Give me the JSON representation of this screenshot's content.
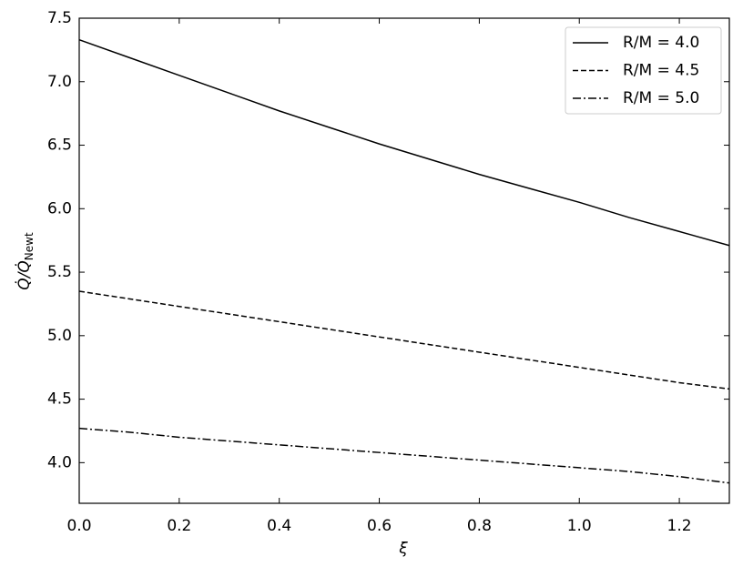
{
  "chart_data": {
    "type": "line",
    "xlabel": "ξ",
    "ylabel": {
      "main": "Q̇/Q̇",
      "sub": "Newt"
    },
    "x": [
      0,
      0.1,
      0.2,
      0.3,
      0.4,
      0.5,
      0.6,
      0.7,
      0.8,
      0.9,
      1.0,
      1.1,
      1.2,
      1.3
    ],
    "series": [
      {
        "name": "R/M = 4.0",
        "color": "#000000",
        "linestyle": "solid",
        "values": [
          7.33,
          7.19,
          7.05,
          6.91,
          6.77,
          6.64,
          6.51,
          6.39,
          6.27,
          6.16,
          6.05,
          5.93,
          5.82,
          5.71
        ]
      },
      {
        "name": "R/M = 4.5",
        "color": "#000000",
        "linestyle": "dashed",
        "values": [
          5.35,
          5.29,
          5.23,
          5.17,
          5.11,
          5.05,
          4.99,
          4.93,
          4.87,
          4.81,
          4.75,
          4.69,
          4.63,
          4.58
        ]
      },
      {
        "name": "R/M = 5.0",
        "color": "#000000",
        "linestyle": "dashdot",
        "values": [
          4.27,
          4.24,
          4.2,
          4.17,
          4.14,
          4.11,
          4.08,
          4.05,
          4.02,
          3.99,
          3.96,
          3.93,
          3.89,
          3.84
        ]
      }
    ],
    "xlim": [
      0,
      1.3
    ],
    "ylim": [
      3.68,
      7.5
    ],
    "xticks": [
      {
        "value": 0,
        "label": "0.0"
      },
      0.2,
      0.4,
      0.6,
      0.8,
      {
        "value": 1,
        "label": "1.0"
      },
      1.2
    ],
    "yticks": [
      {
        "value": 4,
        "label": "4.0"
      },
      4.5,
      {
        "value": 5,
        "label": "5.0"
      },
      5.5,
      {
        "value": 6,
        "label": "6.0"
      },
      6.5,
      {
        "value": 7,
        "label": "7.0"
      },
      7.5
    ],
    "grid": false,
    "legend": "upper right"
  }
}
